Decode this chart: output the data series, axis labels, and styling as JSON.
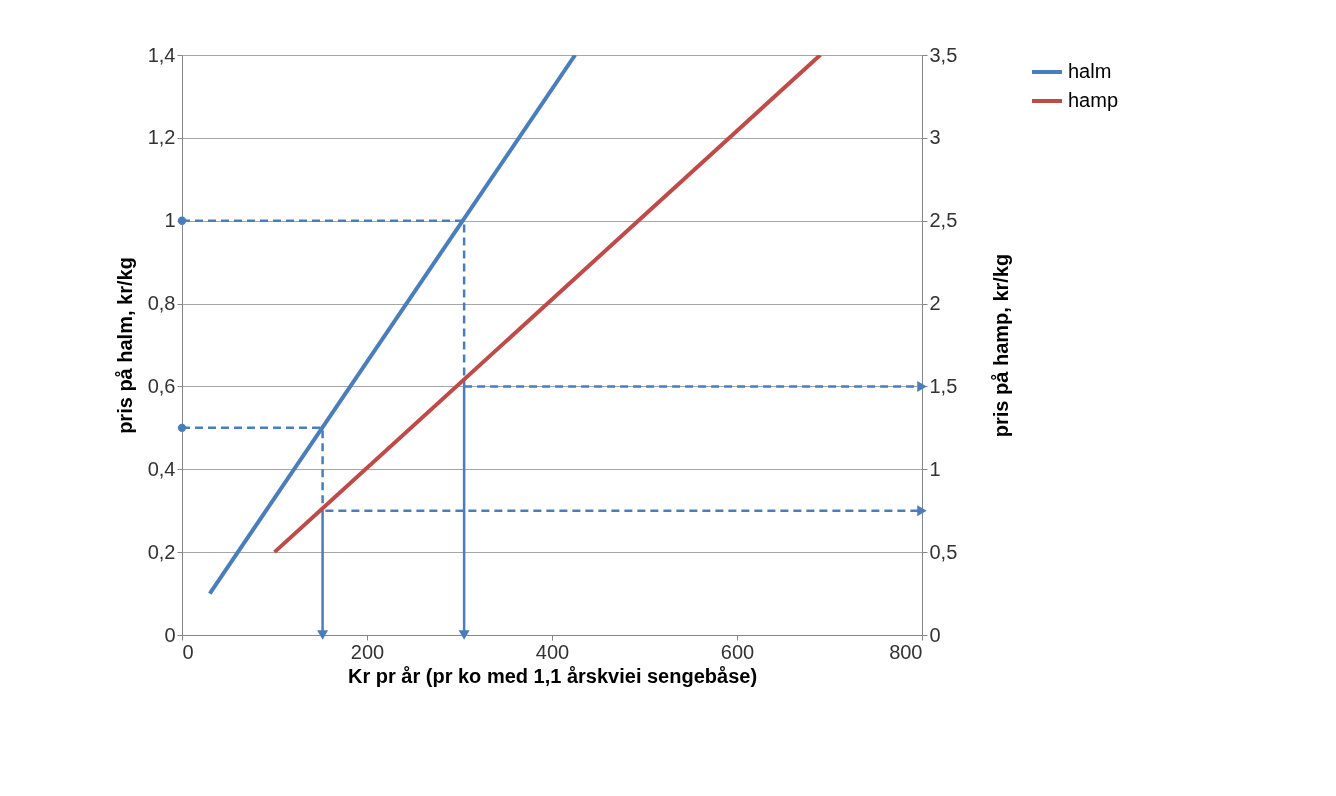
{
  "chart_data": {
    "type": "line",
    "xlabel": "Kr pr år (pr ko med  1,1 årskviei sengebåse)",
    "ylabel": "pris på halm, kr/kg",
    "y2label": "pris på hamp, kr/kg",
    "xlim": [
      0,
      800
    ],
    "xticks": [
      0,
      200,
      400,
      600,
      800
    ],
    "ylim": [
      0,
      1.4
    ],
    "yticks": [
      0,
      {
        "value": 0.2,
        "label": "0,2"
      },
      {
        "value": 0.4,
        "label": "0,4"
      },
      {
        "value": 0.6,
        "label": "0,6"
      },
      {
        "value": 0.8,
        "label": "0,8"
      },
      1,
      {
        "value": 1.2,
        "label": "1,2"
      },
      {
        "value": 1.4,
        "label": "1,4"
      }
    ],
    "y2lim": [
      0,
      3.5
    ],
    "y2ticks": [
      0,
      {
        "value": 0.5,
        "label": "0,5"
      },
      1,
      {
        "value": 1.5,
        "label": "1,5"
      },
      2,
      {
        "value": 2.5,
        "label": "2,5"
      },
      3,
      {
        "value": 3.5,
        "label": "3,5"
      }
    ],
    "grid": "y",
    "legend": "right",
    "series": [
      {
        "name": "halm",
        "color": "#4a7ebb",
        "x": [
          30,
          425
        ],
        "values": [
          0.1,
          1.4
        ]
      },
      {
        "name": "hamp",
        "color": "#be4b48",
        "axis": "y2",
        "x": [
          100,
          690
        ],
        "values": [
          0.5,
          3.5
        ]
      },
      {
        "color": "#4a7ebb",
        "type": "scatter",
        "marker": "circle",
        "x": [
          0,
          0
        ],
        "values": [
          1,
          0.5
        ]
      },
      {
        "color": "#4a7ebb",
        "line_style": "dashed",
        "x": [
          0,
          305,
          305
        ],
        "values": [
          1,
          1,
          0.62
        ]
      },
      {
        "color": "#4a7ebb",
        "line_style": "dashed",
        "x": [
          0,
          152,
          152
        ],
        "values": [
          0.5,
          0.5,
          0.3
        ]
      },
      {
        "color": "#4a7ebb",
        "marker": "triangle",
        "x": [
          305,
          305
        ],
        "values": [
          0.62,
          0
        ]
      },
      {
        "color": "#4a7ebb",
        "marker": "triangle",
        "x": [
          152,
          152
        ],
        "values": [
          0.3,
          0
        ]
      },
      {
        "color": "#4a7ebb",
        "line_style": "dashed",
        "marker": "triangle",
        "axis": "y2",
        "x": [
          305,
          800
        ],
        "values": [
          1.5,
          1.5
        ]
      },
      {
        "color": "#4a7ebb",
        "line_style": "dashed",
        "marker": "triangle",
        "axis": "y2",
        "x": [
          155,
          800
        ],
        "values": [
          0.75,
          0.75
        ]
      }
    ]
  }
}
